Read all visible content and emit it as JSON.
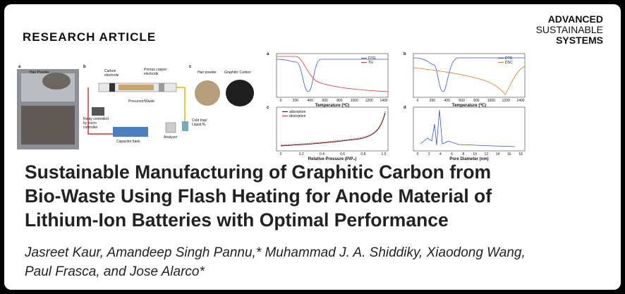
{
  "header": {
    "section": "RESEARCH ARTICLE",
    "journal": [
      "ADVANCED",
      "SUSTAINABLE",
      "SYSTEMS"
    ]
  },
  "figure": {
    "setup": {
      "panels": [
        "a",
        "b",
        "c"
      ],
      "labels": [
        "Hair Powder",
        "Carbon",
        "electrode",
        "Porous copper",
        "electrode",
        "Precursor/Waste",
        "Relay controlled",
        "by micro",
        "controller",
        "Capacitor bank",
        "Analyzer",
        "Cold trap/",
        "Liquid N₂",
        "Hair powder",
        "Graphitic Carbon"
      ]
    },
    "charts": [
      {
        "panel": "a",
        "x_label": "Temperature (⁰C)",
        "legend": [
          "DTG",
          "TG"
        ],
        "xticks": [
          "0",
          "200",
          "400",
          "600",
          "800",
          "1000",
          "1200",
          "1400"
        ]
      },
      {
        "panel": "b",
        "x_label": "Temperature (⁰C)",
        "legend": [
          "DTG",
          "DSC"
        ],
        "xticks": [
          "0",
          "200",
          "400",
          "600",
          "800",
          "1000",
          "1200",
          "1400"
        ]
      },
      {
        "panel": "c",
        "x_label": "Relative Pressure (P/P₀)",
        "legend": [
          "adsorption",
          "desorption"
        ],
        "xticks": [
          "0",
          "0.2",
          "0.4",
          "0.6",
          "0.8",
          "1.0"
        ]
      },
      {
        "panel": "d",
        "x_label": "Pore Diameter (nm)",
        "legend": [],
        "xticks": [
          "0",
          "2",
          "4",
          "6",
          "8",
          "10",
          "12",
          "14",
          "16",
          "18"
        ]
      }
    ]
  },
  "title": [
    "Sustainable Manufacturing of Graphitic Carbon from",
    "Bio-Waste Using Flash Heating for Anode Material of",
    "Lithium-Ion Batteries with Optimal Performance"
  ],
  "authors": [
    "Jasreet Kaur, Amandeep Singh Pannu,* Muhammad J. A. Shiddiky, Xiaodong Wang,",
    "Paul Frasca, and Jose Alarco*"
  ]
}
